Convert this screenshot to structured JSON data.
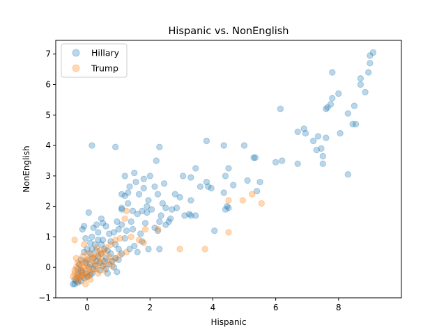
{
  "chart_data": {
    "type": "scatter",
    "title": "Hispanic vs. NonEnglish",
    "xlabel": "Hispanic",
    "ylabel": "NonEnglish",
    "xlim": [
      -1.0,
      10.0
    ],
    "ylim": [
      -1.0,
      7.45
    ],
    "xticks": [
      0,
      2,
      4,
      6,
      8
    ],
    "yticks": [
      -1,
      0,
      1,
      2,
      3,
      4,
      5,
      6,
      7
    ],
    "grid": false,
    "legend_position": "top-left",
    "series": [
      {
        "name": "Hillary",
        "color": "#1f77b4",
        "alpha": 0.3,
        "points": [
          [
            9.1,
            7.05
          ],
          [
            9.0,
            6.95
          ],
          [
            9.0,
            6.7
          ],
          [
            8.95,
            6.4
          ],
          [
            8.7,
            6.2
          ],
          [
            8.7,
            6.0
          ],
          [
            8.85,
            5.75
          ],
          [
            7.8,
            6.4
          ],
          [
            7.8,
            5.55
          ],
          [
            7.75,
            5.35
          ],
          [
            7.65,
            5.25
          ],
          [
            7.6,
            5.2
          ],
          [
            8.0,
            5.7
          ],
          [
            8.5,
            5.3
          ],
          [
            8.3,
            5.05
          ],
          [
            8.45,
            4.7
          ],
          [
            8.55,
            4.7
          ],
          [
            8.05,
            4.4
          ],
          [
            7.6,
            4.25
          ],
          [
            7.35,
            4.3
          ],
          [
            7.2,
            4.15
          ],
          [
            7.45,
            3.9
          ],
          [
            7.3,
            3.85
          ],
          [
            6.9,
            4.55
          ],
          [
            6.95,
            4.4
          ],
          [
            6.7,
            4.45
          ],
          [
            6.2,
            3.5
          ],
          [
            6.0,
            3.45
          ],
          [
            6.7,
            3.4
          ],
          [
            7.5,
            3.4
          ],
          [
            7.5,
            3.65
          ],
          [
            8.3,
            3.05
          ],
          [
            6.15,
            5.2
          ],
          [
            0.15,
            4.0
          ],
          [
            0.9,
            3.95
          ],
          [
            2.3,
            3.95
          ],
          [
            3.8,
            4.15
          ],
          [
            4.35,
            4.0
          ],
          [
            5.0,
            4.0
          ],
          [
            5.3,
            3.6
          ],
          [
            5.35,
            3.6
          ],
          [
            5.5,
            2.8
          ],
          [
            5.4,
            2.5
          ],
          [
            5.1,
            2.85
          ],
          [
            4.65,
            2.7
          ],
          [
            4.5,
            3.25
          ],
          [
            4.4,
            3.0
          ],
          [
            4.35,
            2.45
          ],
          [
            4.45,
            2.0
          ],
          [
            4.4,
            1.9
          ],
          [
            4.5,
            1.95
          ],
          [
            4.05,
            1.2
          ],
          [
            3.95,
            2.6
          ],
          [
            3.8,
            2.8
          ],
          [
            3.6,
            2.65
          ],
          [
            3.85,
            2.65
          ],
          [
            3.45,
            3.25
          ],
          [
            3.3,
            2.95
          ],
          [
            3.05,
            3.0
          ],
          [
            3.3,
            2.2
          ],
          [
            3.25,
            1.75
          ],
          [
            3.3,
            1.7
          ],
          [
            3.45,
            1.7
          ],
          [
            3.1,
            1.7
          ],
          [
            2.95,
            2.3
          ],
          [
            2.8,
            2.4
          ],
          [
            2.85,
            1.95
          ],
          [
            2.7,
            1.9
          ],
          [
            2.5,
            1.95
          ],
          [
            2.4,
            2.1
          ],
          [
            2.45,
            2.75
          ],
          [
            2.2,
            3.5
          ],
          [
            2.25,
            2.4
          ],
          [
            2.15,
            2.65
          ],
          [
            2.0,
            3.0
          ],
          [
            1.8,
            2.9
          ],
          [
            1.5,
            3.1
          ],
          [
            1.55,
            2.8
          ],
          [
            1.2,
            3.0
          ],
          [
            1.3,
            2.45
          ],
          [
            1.35,
            2.65
          ],
          [
            1.65,
            2.4
          ],
          [
            1.8,
            2.6
          ],
          [
            1.95,
            2.2
          ],
          [
            1.9,
            2.0
          ],
          [
            1.75,
            1.85
          ],
          [
            1.6,
            1.75
          ],
          [
            1.45,
            1.85
          ],
          [
            1.3,
            2.1
          ],
          [
            1.1,
            1.95
          ],
          [
            1.1,
            1.9
          ],
          [
            1.1,
            2.4
          ],
          [
            1.2,
            2.35
          ],
          [
            1.9,
            1.8
          ],
          [
            2.05,
            1.9
          ],
          [
            2.35,
            1.7
          ],
          [
            2.65,
            1.6
          ],
          [
            2.6,
            1.5
          ],
          [
            2.3,
            1.5
          ],
          [
            2.15,
            1.3
          ],
          [
            2.25,
            1.2
          ],
          [
            2.5,
            1.4
          ],
          [
            1.85,
            1.45
          ],
          [
            1.7,
            1.1
          ],
          [
            1.45,
            1.25
          ],
          [
            1.4,
            1.5
          ],
          [
            1.25,
            1.2
          ],
          [
            1.0,
            1.25
          ],
          [
            1.1,
            1.4
          ],
          [
            0.95,
            1.5
          ],
          [
            0.85,
            1.15
          ],
          [
            0.7,
            1.1
          ],
          [
            0.6,
            1.35
          ],
          [
            0.5,
            1.45
          ],
          [
            0.45,
            1.6
          ],
          [
            0.35,
            1.15
          ],
          [
            0.3,
            1.4
          ],
          [
            0.2,
            1.3
          ],
          [
            0.05,
            1.8
          ],
          [
            -0.1,
            1.35
          ],
          [
            -0.15,
            1.25
          ],
          [
            0.15,
            1.0
          ],
          [
            0.1,
            0.8
          ],
          [
            0.25,
            0.75
          ],
          [
            0.35,
            0.9
          ],
          [
            0.5,
            0.9
          ],
          [
            0.55,
            0.6
          ],
          [
            0.75,
            0.85
          ],
          [
            0.9,
            0.75
          ],
          [
            1.0,
            0.6
          ],
          [
            1.2,
            0.95
          ],
          [
            1.35,
            0.6
          ],
          [
            1.5,
            0.7
          ],
          [
            1.6,
            0.5
          ],
          [
            1.75,
            0.85
          ],
          [
            1.95,
            0.6
          ],
          [
            2.3,
            0.6
          ],
          [
            1.1,
            0.45
          ],
          [
            0.9,
            0.3
          ],
          [
            0.75,
            0.45
          ],
          [
            0.6,
            0.3
          ],
          [
            0.45,
            0.45
          ],
          [
            0.3,
            0.55
          ],
          [
            0.2,
            0.3
          ],
          [
            0.1,
            0.45
          ],
          [
            0.0,
            0.6
          ],
          [
            -0.1,
            0.5
          ],
          [
            -0.2,
            0.25
          ],
          [
            -0.05,
            0.15
          ],
          [
            0.1,
            0.1
          ],
          [
            0.25,
            0.05
          ],
          [
            0.4,
            0.15
          ],
          [
            0.55,
            0.2
          ],
          [
            0.7,
            0.1
          ],
          [
            1.0,
            0.25
          ],
          [
            0.95,
            -0.15
          ],
          [
            0.6,
            -0.05
          ],
          [
            0.4,
            -0.1
          ],
          [
            0.15,
            -0.2
          ],
          [
            -0.05,
            -0.2
          ],
          [
            -0.2,
            -0.1
          ],
          [
            -0.3,
            -0.25
          ],
          [
            -0.35,
            -0.45
          ],
          [
            -0.45,
            -0.55
          ],
          [
            -0.4,
            -0.55
          ],
          [
            -0.3,
            -0.5
          ],
          [
            -0.2,
            -0.45
          ],
          [
            -0.1,
            -0.35
          ],
          [
            0.0,
            -0.3
          ],
          [
            0.1,
            -0.25
          ],
          [
            -0.25,
            -0.3
          ],
          [
            -0.15,
            -0.15
          ],
          [
            0.05,
            0.0
          ],
          [
            0.2,
            -0.05
          ],
          [
            -0.3,
            -0.05
          ],
          [
            -0.4,
            -0.4
          ],
          [
            0.3,
            0.2
          ],
          [
            0.5,
            0.05
          ],
          [
            0.65,
            -0.2
          ],
          [
            0.8,
            0.2
          ],
          [
            -0.25,
            0.1
          ],
          [
            0.0,
            0.25
          ],
          [
            0.35,
            0.35
          ],
          [
            0.15,
            0.6
          ],
          [
            -0.05,
            0.95
          ],
          [
            0.45,
            0.75
          ],
          [
            0.65,
            0.55
          ],
          [
            0.85,
            0.0
          ]
        ]
      },
      {
        "name": "Trump",
        "color": "#ff7f0e",
        "alpha": 0.3,
        "points": [
          [
            5.25,
            2.4
          ],
          [
            5.55,
            2.1
          ],
          [
            4.95,
            2.2
          ],
          [
            4.5,
            2.2
          ],
          [
            4.5,
            1.15
          ],
          [
            3.75,
            0.6
          ],
          [
            2.95,
            0.6
          ],
          [
            2.25,
            1.25
          ],
          [
            1.85,
            1.25
          ],
          [
            1.8,
            0.8
          ],
          [
            1.65,
            0.9
          ],
          [
            1.4,
            1.0
          ],
          [
            1.25,
            1.85
          ],
          [
            1.2,
            1.6
          ],
          [
            1.05,
            0.95
          ],
          [
            0.9,
            0.9
          ],
          [
            0.75,
            0.75
          ],
          [
            0.6,
            0.65
          ],
          [
            0.55,
            0.5
          ],
          [
            0.4,
            0.55
          ],
          [
            0.35,
            0.4
          ],
          [
            0.25,
            0.35
          ],
          [
            0.15,
            0.4
          ],
          [
            0.05,
            0.25
          ],
          [
            -0.05,
            0.2
          ],
          [
            -0.15,
            0.15
          ],
          [
            -0.25,
            0.1
          ],
          [
            -0.35,
            0.0
          ],
          [
            -0.4,
            -0.1
          ],
          [
            -0.45,
            -0.3
          ],
          [
            -0.35,
            -0.35
          ],
          [
            -0.3,
            -0.45
          ],
          [
            -0.2,
            -0.3
          ],
          [
            -0.1,
            -0.25
          ],
          [
            0.0,
            -0.2
          ],
          [
            0.1,
            -0.15
          ],
          [
            0.2,
            -0.1
          ],
          [
            0.3,
            -0.05
          ],
          [
            0.45,
            0.05
          ],
          [
            0.6,
            0.1
          ],
          [
            0.75,
            0.2
          ],
          [
            0.9,
            0.3
          ],
          [
            1.05,
            0.4
          ],
          [
            1.25,
            0.5
          ],
          [
            0.4,
            0.2
          ],
          [
            0.2,
            0.15
          ],
          [
            0.0,
            0.05
          ],
          [
            -0.2,
            -0.05
          ],
          [
            -0.3,
            -0.2
          ],
          [
            -0.15,
            -0.1
          ],
          [
            0.05,
            -0.05
          ],
          [
            0.25,
            0.1
          ],
          [
            0.5,
            0.25
          ],
          [
            0.7,
            0.35
          ],
          [
            0.15,
            0.3
          ],
          [
            -0.05,
            -0.35
          ],
          [
            -0.25,
            -0.4
          ],
          [
            -0.4,
            -0.2
          ],
          [
            -0.35,
            0.3
          ],
          [
            -0.4,
            0.9
          ],
          [
            -0.1,
            0.75
          ],
          [
            0.3,
            0.65
          ],
          [
            -0.05,
            -0.55
          ],
          [
            0.05,
            -0.3
          ],
          [
            0.35,
            -0.2
          ],
          [
            0.55,
            -0.1
          ],
          [
            0.8,
            0.05
          ],
          [
            -0.1,
            0.0
          ],
          [
            -0.3,
            0.15
          ],
          [
            0.0,
            0.45
          ],
          [
            -0.15,
            0.35
          ],
          [
            0.1,
            -0.4
          ],
          [
            -0.2,
            -0.25
          ],
          [
            0.45,
            0.45
          ]
        ]
      }
    ]
  }
}
